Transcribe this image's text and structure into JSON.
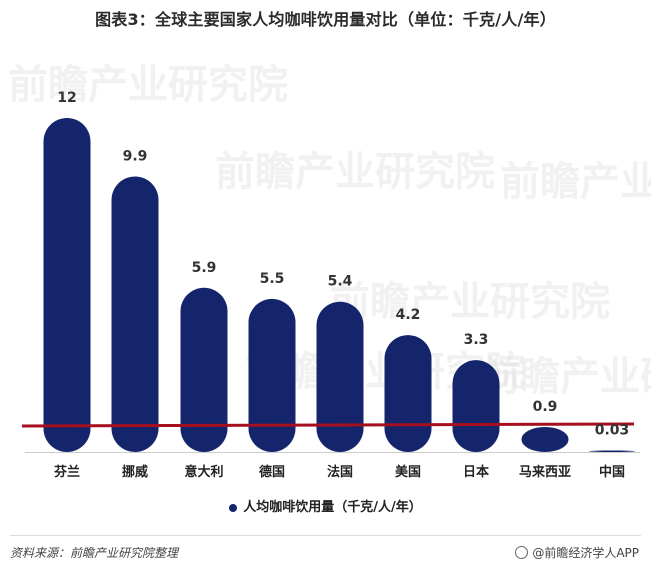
{
  "chart_data": {
    "type": "bar",
    "title": "图表3：全球主要国家人均咖啡饮用量对比（单位：千克/人/年）",
    "categories": [
      "芬兰",
      "挪威",
      "意大利",
      "德国",
      "法国",
      "美国",
      "日本",
      "马来西亚",
      "中国"
    ],
    "series": [
      {
        "name": "人均咖啡饮用量（千克/人/年）",
        "values": [
          12,
          9.9,
          5.9,
          5.5,
          5.4,
          4.2,
          3.3,
          0.9,
          0.03
        ]
      }
    ],
    "value_labels": [
      "12",
      "9.9",
      "5.9",
      "5.5",
      "5.4",
      "4.2",
      "3.3",
      "0.9",
      "0.03"
    ],
    "ylim": [
      0,
      12
    ],
    "grid": false,
    "legend_position": "bottom",
    "reference_line": true
  },
  "colors": {
    "bar": "#15256b",
    "reference_line": "#a50f1e",
    "axis": "#cccccc"
  },
  "footer": {
    "source": "资料来源：前瞻产业研究院整理",
    "brand": "@前瞻经济学人APP"
  },
  "watermark": {
    "text_cn": "前瞻产业研究院"
  }
}
